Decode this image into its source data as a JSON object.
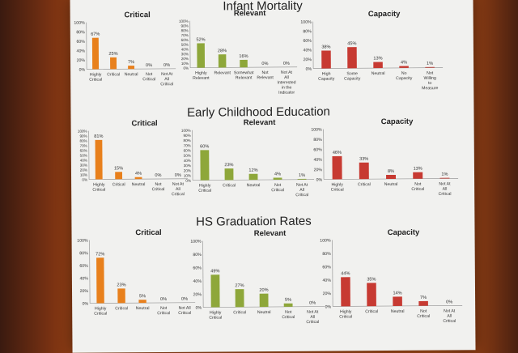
{
  "sections": [
    {
      "title": "Infant Mortality"
    },
    {
      "title": "Early Childhood Education"
    },
    {
      "title": "HS Graduation Rates"
    }
  ],
  "colors": {
    "critical": "#e8801c",
    "relevant": "#8ea73a",
    "capacity": "#c73a32",
    "text": "#222222",
    "axis": "#9a9a9a"
  },
  "chart_data": [
    {
      "type": "bar",
      "section": "Infant Mortality",
      "title": "Critical",
      "categories": [
        "Highly Critical",
        "Critical",
        "Neutral",
        "Not Critical",
        "Not At All Critical"
      ],
      "values": [
        67,
        25,
        7,
        0,
        0
      ],
      "labels": [
        "67%",
        "25%",
        "7%",
        "0%",
        "0%"
      ],
      "ylim": [
        0,
        100
      ],
      "yticks": [
        "0%",
        "20%",
        "40%",
        "60%",
        "80%",
        "100%"
      ]
    },
    {
      "type": "bar",
      "section": "Infant Mortality",
      "title": "Relevant",
      "categories": [
        "Highly Relevant",
        "Relevant",
        "Somewhat Relevant",
        "Not Relevant",
        "Not At All Interested in the Indicator"
      ],
      "values": [
        52,
        28,
        16,
        0,
        0
      ],
      "labels": [
        "52%",
        "28%",
        "16%",
        "0%",
        "0%"
      ],
      "ylim": [
        0,
        100
      ],
      "yticks": [
        "0%",
        "10%",
        "20%",
        "30%",
        "40%",
        "50%",
        "60%",
        "70%",
        "80%",
        "90%",
        "100%"
      ]
    },
    {
      "type": "bar",
      "section": "Infant Mortality",
      "title": "Capacity",
      "categories": [
        "High Capacity",
        "Some Capacity",
        "Neutral",
        "No Capacity",
        "Not Willing to Measure"
      ],
      "values": [
        38,
        45,
        13,
        4,
        1
      ],
      "labels": [
        "38%",
        "45%",
        "13%",
        "4%",
        "1%"
      ],
      "ylim": [
        0,
        100
      ],
      "yticks": [
        "0%",
        "20%",
        "40%",
        "60%",
        "80%",
        "100%"
      ]
    },
    {
      "type": "bar",
      "section": "Early Childhood Education",
      "title": "Critical",
      "categories": [
        "Highly Critical",
        "Critical",
        "Neutral",
        "Not Critical",
        "Not At All Critical"
      ],
      "values": [
        81,
        15,
        4,
        0,
        0
      ],
      "labels": [
        "81%",
        "15%",
        "4%",
        "0%",
        "0%"
      ],
      "ylim": [
        0,
        100
      ],
      "yticks": [
        "0%",
        "10%",
        "20%",
        "30%",
        "40%",
        "50%",
        "60%",
        "70%",
        "80%",
        "90%",
        "100%"
      ]
    },
    {
      "type": "bar",
      "section": "Early Childhood Education",
      "title": "Relevant",
      "categories": [
        "Highly Critical",
        "Critical",
        "Neutral",
        "Not Critical",
        "Not At All Critical"
      ],
      "values": [
        60,
        23,
        12,
        4,
        1
      ],
      "labels": [
        "60%",
        "23%",
        "12%",
        "4%",
        "1%"
      ],
      "ylim": [
        0,
        100
      ],
      "yticks": [
        "0%",
        "10%",
        "20%",
        "30%",
        "40%",
        "50%",
        "60%",
        "70%",
        "80%",
        "90%",
        "100%"
      ]
    },
    {
      "type": "bar",
      "section": "Early Childhood Education",
      "title": "Capacity",
      "categories": [
        "Highly Critical",
        "Critical",
        "Neutral",
        "Not Critical",
        "Not At All Critical"
      ],
      "values": [
        46,
        33,
        8,
        13,
        1
      ],
      "labels": [
        "46%",
        "33%",
        "8%",
        "13%",
        "1%"
      ],
      "ylim": [
        0,
        100
      ],
      "yticks": [
        "0%",
        "20%",
        "40%",
        "60%",
        "80%",
        "100%"
      ]
    },
    {
      "type": "bar",
      "section": "HS Graduation Rates",
      "title": "Critical",
      "categories": [
        "Highly Critical",
        "Critical",
        "Neutral",
        "Not Critical",
        "Not All Critical"
      ],
      "values": [
        72,
        23,
        5,
        0,
        0
      ],
      "labels": [
        "72%",
        "23%",
        "5%",
        "0%",
        "0%"
      ],
      "ylim": [
        0,
        100
      ],
      "yticks": [
        "0%",
        "20%",
        "40%",
        "60%",
        "80%",
        "100%"
      ]
    },
    {
      "type": "bar",
      "section": "HS Graduation Rates",
      "title": "Relevant",
      "categories": [
        "Highly Critical",
        "Critical",
        "Neutral",
        "Not Critical",
        "Not At All Critical"
      ],
      "values": [
        49,
        27,
        20,
        5,
        0
      ],
      "labels": [
        "49%",
        "27%",
        "20%",
        "5%",
        "0%"
      ],
      "ylim": [
        0,
        100
      ],
      "yticks": [
        "0%",
        "20%",
        "40%",
        "60%",
        "80%",
        "100%"
      ]
    },
    {
      "type": "bar",
      "section": "HS Graduation Rates",
      "title": "Capacity",
      "categories": [
        "Highly Critical",
        "Critical",
        "Neutral",
        "Not Critical",
        "Not At All Critical"
      ],
      "values": [
        44,
        35,
        14,
        7,
        0
      ],
      "labels": [
        "44%",
        "35%",
        "14%",
        "7%",
        "0%"
      ],
      "ylim": [
        0,
        100
      ],
      "yticks": [
        "0%",
        "20%",
        "40%",
        "60%",
        "80%",
        "100%"
      ]
    }
  ]
}
